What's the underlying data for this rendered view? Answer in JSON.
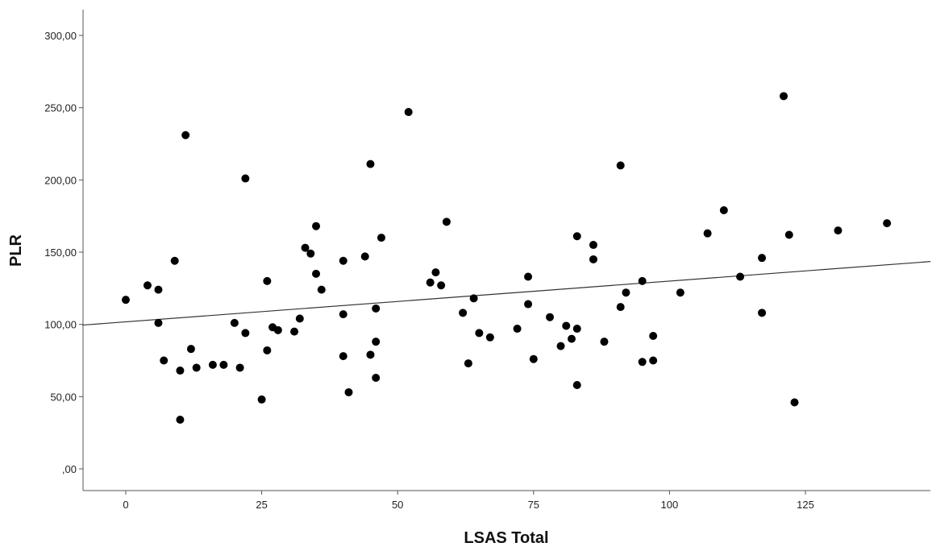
{
  "colors": {
    "background": "#ffffff",
    "point": "#000000",
    "axis": "#555555",
    "fit_line": "#333333"
  },
  "chart_data": {
    "type": "scatter",
    "title": "",
    "xlabel": "LSAS Total",
    "ylabel": "PLR",
    "xlim": [
      -8,
      148
    ],
    "ylim": [
      -15,
      318
    ],
    "x_ticks": [
      0,
      25,
      50,
      75,
      100,
      125
    ],
    "x_tick_labels": [
      "0",
      "25",
      "50",
      "75",
      "100",
      "125"
    ],
    "y_ticks": [
      0,
      50,
      100,
      150,
      200,
      250,
      300
    ],
    "y_tick_labels": [
      ",00",
      "50,00",
      "100,00",
      "150,00",
      "200,00",
      "250,00",
      "300,00"
    ],
    "grid": false,
    "legend": false,
    "fit_line": {
      "x": [
        -8,
        148
      ],
      "y": [
        99.5,
        143.5
      ]
    },
    "points": [
      {
        "x": 0,
        "y": 117
      },
      {
        "x": 4,
        "y": 127
      },
      {
        "x": 6,
        "y": 124
      },
      {
        "x": 6,
        "y": 101
      },
      {
        "x": 7,
        "y": 75
      },
      {
        "x": 9,
        "y": 144
      },
      {
        "x": 10,
        "y": 68
      },
      {
        "x": 10,
        "y": 34
      },
      {
        "x": 11,
        "y": 231
      },
      {
        "x": 12,
        "y": 83
      },
      {
        "x": 13,
        "y": 70
      },
      {
        "x": 16,
        "y": 72
      },
      {
        "x": 18,
        "y": 72
      },
      {
        "x": 20,
        "y": 101
      },
      {
        "x": 21,
        "y": 70
      },
      {
        "x": 22,
        "y": 201
      },
      {
        "x": 22,
        "y": 94
      },
      {
        "x": 25,
        "y": 48
      },
      {
        "x": 26,
        "y": 130
      },
      {
        "x": 26,
        "y": 82
      },
      {
        "x": 27,
        "y": 98
      },
      {
        "x": 28,
        "y": 96
      },
      {
        "x": 31,
        "y": 95
      },
      {
        "x": 32,
        "y": 104
      },
      {
        "x": 33,
        "y": 153
      },
      {
        "x": 34,
        "y": 149
      },
      {
        "x": 35,
        "y": 168
      },
      {
        "x": 35,
        "y": 135
      },
      {
        "x": 36,
        "y": 124
      },
      {
        "x": 40,
        "y": 144
      },
      {
        "x": 40,
        "y": 107
      },
      {
        "x": 40,
        "y": 78
      },
      {
        "x": 41,
        "y": 53
      },
      {
        "x": 44,
        "y": 147
      },
      {
        "x": 45,
        "y": 211
      },
      {
        "x": 45,
        "y": 79
      },
      {
        "x": 46,
        "y": 111
      },
      {
        "x": 46,
        "y": 88
      },
      {
        "x": 46,
        "y": 63
      },
      {
        "x": 47,
        "y": 160
      },
      {
        "x": 52,
        "y": 247
      },
      {
        "x": 56,
        "y": 129
      },
      {
        "x": 57,
        "y": 136
      },
      {
        "x": 58,
        "y": 127
      },
      {
        "x": 59,
        "y": 171
      },
      {
        "x": 62,
        "y": 108
      },
      {
        "x": 63,
        "y": 73
      },
      {
        "x": 64,
        "y": 118
      },
      {
        "x": 65,
        "y": 94
      },
      {
        "x": 67,
        "y": 91
      },
      {
        "x": 72,
        "y": 97
      },
      {
        "x": 74,
        "y": 133
      },
      {
        "x": 74,
        "y": 114
      },
      {
        "x": 75,
        "y": 76
      },
      {
        "x": 78,
        "y": 105
      },
      {
        "x": 80,
        "y": 85
      },
      {
        "x": 81,
        "y": 99
      },
      {
        "x": 82,
        "y": 90
      },
      {
        "x": 83,
        "y": 161
      },
      {
        "x": 83,
        "y": 97
      },
      {
        "x": 83,
        "y": 58
      },
      {
        "x": 86,
        "y": 155
      },
      {
        "x": 86,
        "y": 145
      },
      {
        "x": 88,
        "y": 88
      },
      {
        "x": 91,
        "y": 210
      },
      {
        "x": 91,
        "y": 112
      },
      {
        "x": 92,
        "y": 122
      },
      {
        "x": 95,
        "y": 130
      },
      {
        "x": 95,
        "y": 74
      },
      {
        "x": 97,
        "y": 92
      },
      {
        "x": 97,
        "y": 75
      },
      {
        "x": 102,
        "y": 122
      },
      {
        "x": 107,
        "y": 163
      },
      {
        "x": 110,
        "y": 179
      },
      {
        "x": 113,
        "y": 133
      },
      {
        "x": 117,
        "y": 146
      },
      {
        "x": 117,
        "y": 108
      },
      {
        "x": 121,
        "y": 258
      },
      {
        "x": 122,
        "y": 162
      },
      {
        "x": 123,
        "y": 46
      },
      {
        "x": 131,
        "y": 165
      },
      {
        "x": 140,
        "y": 170
      }
    ]
  }
}
